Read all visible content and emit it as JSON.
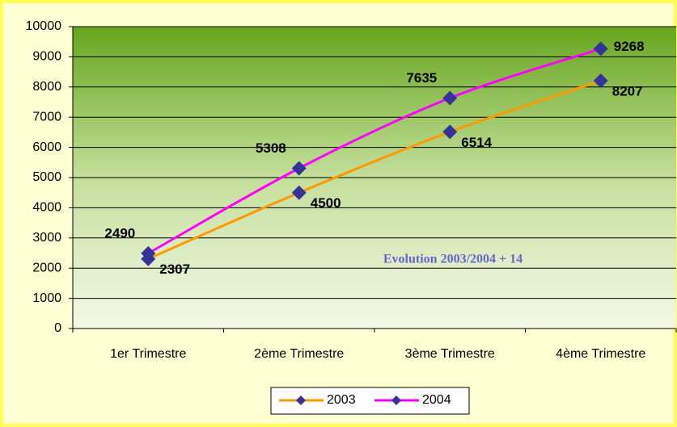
{
  "chart_data": {
    "type": "line",
    "categories": [
      "1er Trimestre",
      "2ème Trimestre",
      "3ème Trimestre",
      "4ème Trimestre"
    ],
    "series": [
      {
        "name": "2003",
        "color": "#ff9900",
        "marker_color": "#333399",
        "values": [
          2307,
          4500,
          6514,
          8207
        ]
      },
      {
        "name": "2004",
        "color": "#ff00ff",
        "marker_color": "#333399",
        "values": [
          2490,
          5308,
          7635,
          9268
        ]
      }
    ],
    "ylim": [
      0,
      10000
    ],
    "yticks": [
      0,
      1000,
      2000,
      3000,
      4000,
      5000,
      6000,
      7000,
      8000,
      9000,
      10000
    ],
    "grid": true,
    "legend": "bottom",
    "annotation": "Evolution 2003/2004 + 14"
  }
}
